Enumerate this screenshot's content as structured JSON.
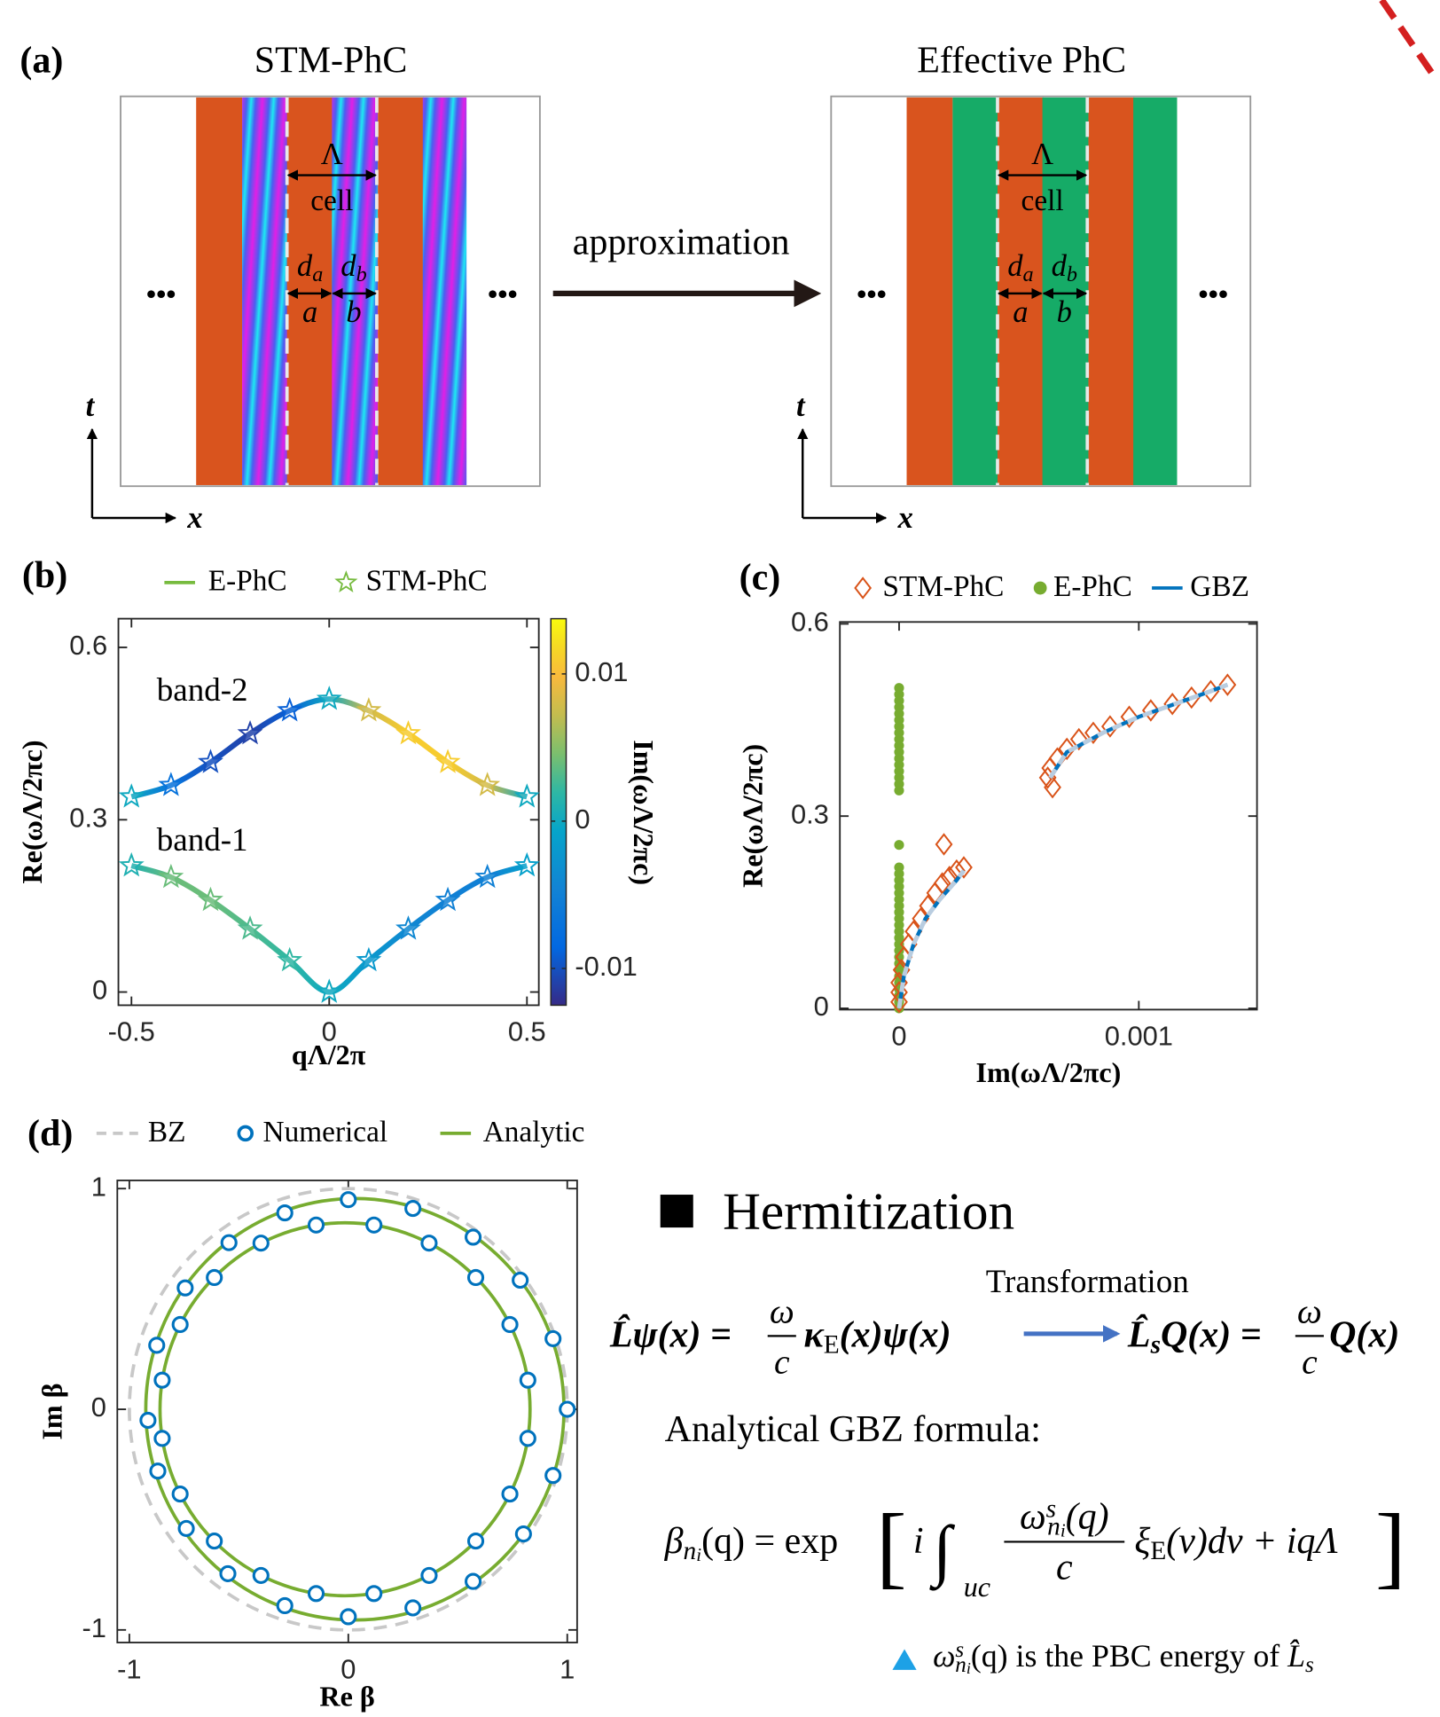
{
  "panel_a": {
    "label": "(a)",
    "left_title": "STM-PhC",
    "right_title": "Effective PhC",
    "arrow_label": "approximation",
    "period": "Λ",
    "cell": "cell",
    "d": "d",
    "sub_a": "a",
    "sub_b": "b",
    "layer_a": "a",
    "layer_b": "b",
    "ellipsis": "•••",
    "t_axis": "t",
    "x_axis": "x"
  },
  "chart_data": [
    {
      "type": "line",
      "panel_label": "(b)",
      "xlabel": "qΛ/2π",
      "ylabel": "Re(ωΛ/2πc)",
      "x": [
        -0.5,
        -0.4,
        -0.3,
        -0.2,
        -0.1,
        0,
        0.1,
        0.2,
        0.3,
        0.4,
        0.5
      ],
      "xlim": [
        -0.533,
        0.53
      ],
      "ylim": [
        -0.023,
        0.65
      ],
      "xticks": [
        -0.5,
        0,
        0.5
      ],
      "yticks": [
        0,
        0.3,
        0.6
      ],
      "series": [
        {
          "name": "E-PhC",
          "color": "#77bb3f",
          "marker": "line",
          "bands": [
            {
              "label": "band-1",
              "values": [
                0.22,
                0.2,
                0.16,
                0.11,
                0.055,
                0,
                0.055,
                0.11,
                0.16,
                0.2,
                0.22
              ],
              "im_values": [
                0.001,
                0.004,
                0.004,
                0.003,
                0.002,
                0,
                -0.002,
                -0.004,
                -0.005,
                -0.005,
                -0.001
              ]
            },
            {
              "label": "band-2",
              "values": [
                0.34,
                0.36,
                0.4,
                0.45,
                0.49,
                0.51,
                0.49,
                0.45,
                0.4,
                0.36,
                0.34
              ],
              "im_values": [
                0,
                -0.007,
                -0.01,
                -0.011,
                -0.009,
                0,
                0.008,
                0.011,
                0.011,
                0.008,
                0
              ]
            }
          ]
        },
        {
          "name": "STM-PhC",
          "color": "#77bb3f",
          "marker": "star",
          "bands": [
            {
              "values": [
                0.22,
                0.2,
                0.16,
                0.11,
                0.055,
                0,
                0.055,
                0.11,
                0.16,
                0.2,
                0.22
              ],
              "im_values": [
                0.001,
                0.004,
                0.004,
                0.003,
                0.002,
                0,
                -0.002,
                -0.004,
                -0.005,
                -0.005,
                -0.001
              ]
            },
            {
              "values": [
                0.34,
                0.36,
                0.4,
                0.45,
                0.49,
                0.51,
                0.49,
                0.45,
                0.4,
                0.36,
                0.34
              ],
              "im_values": [
                0,
                -0.007,
                -0.01,
                -0.011,
                -0.009,
                0,
                0.008,
                0.011,
                0.011,
                0.008,
                0
              ]
            }
          ]
        }
      ],
      "colorbar": {
        "label": "Im(ωΛ/2πc)",
        "lim": [
          -0.0125,
          0.01375
        ],
        "ticks": [
          -0.01,
          0,
          0.01
        ]
      }
    },
    {
      "type": "scatter",
      "panel_label": "(c)",
      "xlabel": "Im(ωΛ/2πc)",
      "ylabel": "Re(ωΛ/2πc)",
      "xlim": [
        -0.000247,
        0.001493
      ],
      "ylim": [
        -0.002,
        0.603
      ],
      "xticks": [
        0,
        0.001
      ],
      "yticks": [
        0,
        0.3,
        0.6
      ],
      "series": [
        {
          "name": "STM-PhC",
          "color": "#d95319",
          "marker": "diamond",
          "x": [
            0,
            0,
            0,
            1e-05,
            2e-05,
            4e-05,
            6e-05,
            9e-05,
            0.00012,
            0.00015,
            0.00018,
            0.00021,
            0.00024,
            0.00027,
            0.000187,
            0.00064,
            0.00062,
            0.00063,
            0.00066,
            0.0007,
            0.00075,
            0.00081,
            0.00088,
            0.00096,
            0.00105,
            0.00114,
            0.00122,
            0.0013,
            0.00137
          ],
          "values": [
            0.01,
            0.025,
            0.04,
            0.06,
            0.08,
            0.1,
            0.12,
            0.14,
            0.16,
            0.18,
            0.195,
            0.205,
            0.215,
            0.22,
            0.256,
            0.345,
            0.36,
            0.375,
            0.39,
            0.405,
            0.42,
            0.43,
            0.44,
            0.455,
            0.465,
            0.475,
            0.485,
            0.495,
            0.505
          ]
        },
        {
          "name": "E-PhC",
          "color": "#77ac30",
          "marker": "dot",
          "x": [
            0,
            0,
            0,
            0,
            0,
            0,
            0,
            0,
            0,
            0,
            0,
            0,
            0,
            0,
            0,
            0,
            0,
            0,
            0,
            0,
            0,
            0,
            0,
            0,
            0,
            0,
            0,
            0,
            0,
            0,
            0,
            0,
            0,
            0,
            0,
            0,
            0,
            0,
            0,
            0,
            0
          ],
          "values": [
            0,
            0.01,
            0.02,
            0.03,
            0.04,
            0.05,
            0.06,
            0.07,
            0.08,
            0.09,
            0.1,
            0.11,
            0.12,
            0.13,
            0.14,
            0.15,
            0.16,
            0.17,
            0.18,
            0.19,
            0.2,
            0.21,
            0.22,
            0.255,
            0.34,
            0.35,
            0.36,
            0.37,
            0.38,
            0.39,
            0.4,
            0.41,
            0.42,
            0.43,
            0.44,
            0.45,
            0.46,
            0.47,
            0.48,
            0.49,
            0.5
          ]
        },
        {
          "name": "GBZ",
          "color": "#0072bd",
          "marker": "line",
          "x": [
            0,
            2e-05,
            6e-05,
            0.00011,
            0.00017,
            0.00024,
            0.00027,
            null,
            0.00063,
            0.0007,
            0.00085,
            0.001,
            0.00115,
            0.0013,
            0.00137
          ],
          "values": [
            0,
            0.05,
            0.1,
            0.14,
            0.17,
            0.2,
            0.215,
            null,
            0.36,
            0.4,
            0.43,
            0.455,
            0.475,
            0.495,
            0.505
          ]
        }
      ]
    },
    {
      "type": "circle",
      "panel_label": "(d)",
      "xlabel": "Re β",
      "ylabel": "Im β",
      "xlim": [
        -1.055,
        1.045
      ],
      "ylim": [
        -1.057,
        1.037
      ],
      "xticks": [
        -1,
        0,
        1
      ],
      "yticks": [
        -1,
        0,
        1
      ],
      "series": [
        {
          "name": "BZ",
          "color": "#c8c8c8",
          "marker": "dashed-circle",
          "center": [
            0,
            0
          ],
          "radius": 1
        },
        {
          "name": "Numerical",
          "color": "#0072bd",
          "marker": "open-circle",
          "x": [
            1.0,
            0.935,
            0.785,
            0.57,
            0.295,
            0,
            -0.29,
            -0.545,
            -0.745,
            -0.875,
            -0.915,
            -0.87,
            -0.74,
            -0.55,
            -0.29,
            0,
            0.295,
            0.57,
            0.8,
            0.935,
            0.82,
            0.738,
            0.582,
            0.369,
            0.117,
            -0.147,
            -0.399,
            -0.612,
            -0.768,
            -0.85,
            -0.85,
            -0.768,
            -0.612,
            -0.399,
            -0.147,
            0.117,
            0.369,
            0.582,
            0.738,
            0.82
          ],
          "values": [
            0,
            0.32,
            0.585,
            0.78,
            0.91,
            0.95,
            0.89,
            0.755,
            0.55,
            0.29,
            -0.05,
            -0.28,
            -0.54,
            -0.745,
            -0.89,
            -0.94,
            -0.9,
            -0.78,
            -0.565,
            -0.3,
            0.132,
            0.384,
            0.597,
            0.753,
            0.835,
            0.835,
            0.753,
            0.597,
            0.384,
            0.132,
            -0.132,
            -0.384,
            -0.597,
            -0.753,
            -0.835,
            -0.835,
            -0.753,
            -0.597,
            -0.384,
            -0.132
          ]
        },
        {
          "name": "Analytic",
          "color": "#77ac30",
          "marker": "circle",
          "circles": [
            {
              "center": [
                0.03,
                0
              ],
              "radius": 0.955
            },
            {
              "center": [
                -0.015,
                0
              ],
              "radius": 0.845
            }
          ]
        }
      ]
    }
  ],
  "hermitization": {
    "title": "Hermitization",
    "arrow_label": "Transformation",
    "eq1": {
      "lhs": "L̂ψ(x) =",
      "num": "ω",
      "den": "c",
      "op": "κ",
      "op_sub": "E",
      "rhs": "(x)ψ(x)"
    },
    "eq2": {
      "lhs": "L̂",
      "lhs_sub": "s",
      "lhs_rest": "Q(x) =",
      "num": "ω",
      "den": "c",
      "rhs": "Q(x)"
    },
    "gbz_heading": "Analytical GBZ formula:",
    "gbz": {
      "lhs": "β",
      "lhs_sub": "n",
      "lhs_subsub": "i",
      "lhs_rest": "(q) = exp",
      "bracket_l": "[",
      "i": "i",
      "int": "∫",
      "int_sub": "uc",
      "num": "ω",
      "num_sup": "s",
      "num_sub": "n",
      "num_subsub": "i",
      "num_rest": "(q)",
      "den": "c",
      "xi": "ξ",
      "xi_sub": "E",
      "rest": "(ν)dν + iqΛ",
      "bracket_r": "]"
    },
    "note": {
      "omega": "ω",
      "sup": "s",
      "sub": "n",
      "subsub": "i",
      "rest": "(q) is the PBC energy of ",
      "op": "L̂",
      "op_sub": "s"
    }
  }
}
